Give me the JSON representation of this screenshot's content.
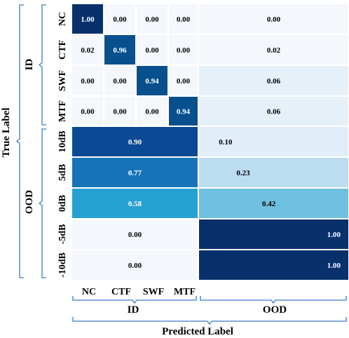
{
  "chart_data": {
    "type": "heatmap",
    "xlabel": "Predicted Label",
    "ylabel": "True Label",
    "x_groups": [
      "ID",
      "OOD"
    ],
    "y_groups": [
      "ID",
      "OOD"
    ],
    "x_tick_labels": [
      "NC",
      "CTF",
      "SWF",
      "MTF"
    ],
    "id_rows": [
      {
        "label": "NC",
        "values": [
          "1.00",
          "0.00",
          "0.00",
          "0.00"
        ],
        "ood": "0.00"
      },
      {
        "label": "CTF",
        "values": [
          "0.02",
          "0.96",
          "0.00",
          "0.00"
        ],
        "ood": "0.02"
      },
      {
        "label": "SWF",
        "values": [
          "0.00",
          "0.00",
          "0.94",
          "0.00"
        ],
        "ood": "0.06"
      },
      {
        "label": "MTF",
        "values": [
          "0.00",
          "0.00",
          "0.00",
          "0.94"
        ],
        "ood": "0.06"
      }
    ],
    "ood_rows": [
      {
        "label": "10dB",
        "id_value": "0.90",
        "ood_value": "0.10"
      },
      {
        "label": "5dB",
        "id_value": "0.77",
        "ood_value": "0.23"
      },
      {
        "label": "0dB",
        "id_value": "0.58",
        "ood_value": "0.42"
      },
      {
        "label": "-5dB",
        "id_value": "0.00",
        "ood_value": "1.00"
      },
      {
        "label": "-10dB",
        "id_value": "0.00",
        "ood_value": "1.00"
      }
    ],
    "colors": {
      "c100": "#08306b",
      "c094": "#084f8e",
      "c090": "#0a4a94",
      "c077": "#1673b8",
      "c058": "#27a0d2",
      "c042": "#6ebfe0",
      "c023": "#bcdcef",
      "c010": "#e1edf8",
      "c006": "#e6f0f9",
      "c000": "#f4f8fc",
      "bracket": "#3a7dc9"
    }
  }
}
